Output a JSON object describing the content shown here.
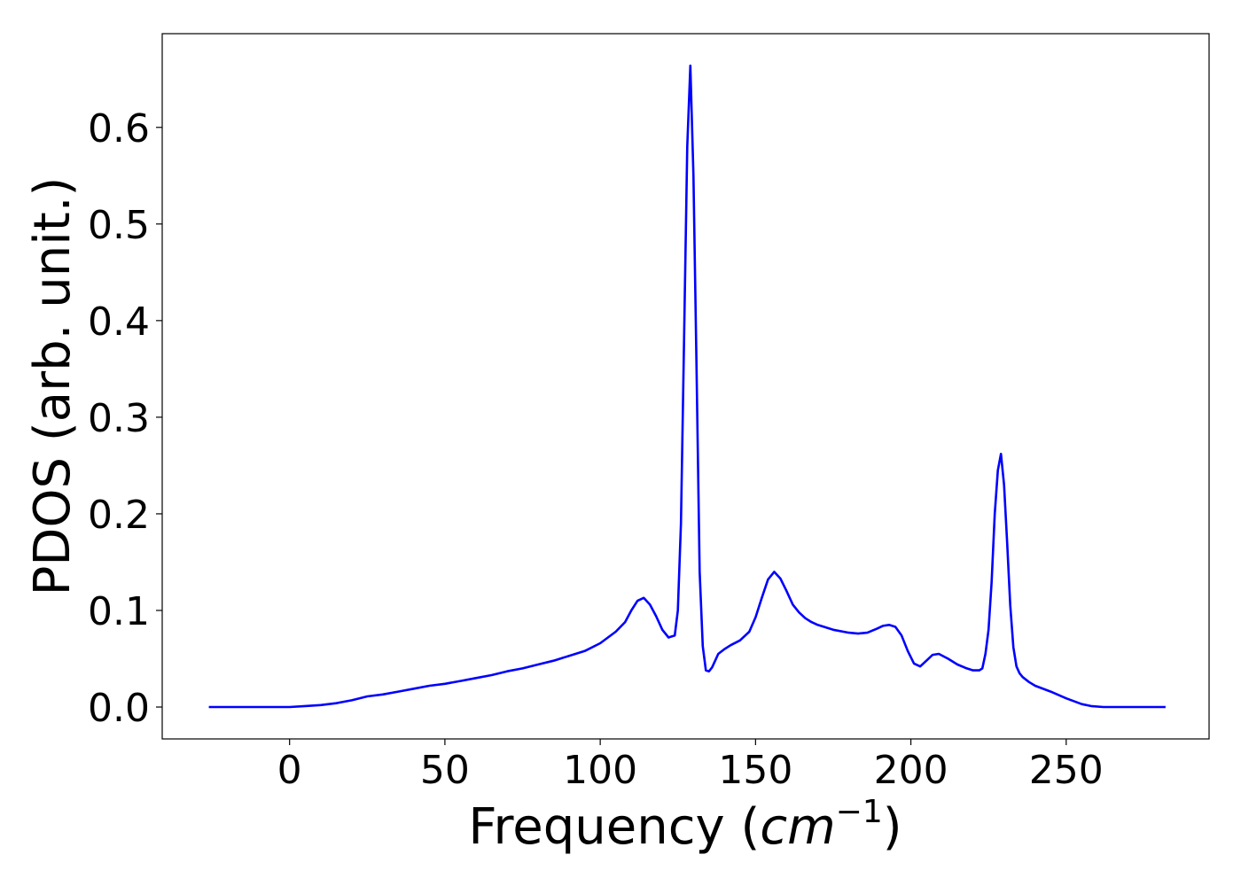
{
  "chart_data": {
    "type": "line",
    "title": "",
    "xlabel": "Frequency (",
    "xlabel_math": "cm",
    "xlabel_superscript": "−1",
    "xlabel_close": ")",
    "ylabel": "PDOS (arb. unit.)",
    "xlim": [
      -41,
      296
    ],
    "ylim": [
      -0.033,
      0.697
    ],
    "xticks": [
      0,
      50,
      100,
      150,
      200,
      250
    ],
    "xtick_labels": [
      "0",
      "50",
      "100",
      "150",
      "200",
      "250"
    ],
    "yticks": [
      0.0,
      0.1,
      0.2,
      0.3,
      0.4,
      0.5,
      0.6
    ],
    "ytick_labels": [
      "0.0",
      "0.1",
      "0.2",
      "0.3",
      "0.4",
      "0.5",
      "0.6"
    ],
    "grid": false,
    "legend": "none",
    "series": [
      {
        "color": "#0000ff",
        "x": [
          -26,
          -10,
          0,
          5,
          10,
          15,
          20,
          25,
          30,
          35,
          40,
          45,
          50,
          55,
          60,
          65,
          70,
          75,
          80,
          85,
          90,
          95,
          100,
          105,
          108,
          110,
          112,
          114,
          116,
          118,
          120,
          122,
          124,
          125,
          126,
          127,
          128,
          129,
          130,
          131,
          132,
          133,
          134,
          135,
          136,
          137,
          138,
          140,
          142,
          145,
          148,
          150,
          152,
          154,
          156,
          158,
          160,
          162,
          164,
          166,
          168,
          170,
          175,
          180,
          183,
          186,
          189,
          191,
          193,
          195,
          197,
          199,
          201,
          203,
          205,
          207,
          209,
          212,
          215,
          218,
          220,
          222,
          223,
          224,
          225,
          226,
          227,
          228,
          229,
          230,
          231,
          232,
          233,
          234,
          235,
          236,
          238,
          240,
          245,
          250,
          255,
          258,
          262,
          270,
          282
        ],
        "y": [
          0.0,
          0.0,
          0.0,
          0.001,
          0.002,
          0.004,
          0.007,
          0.011,
          0.013,
          0.016,
          0.019,
          0.022,
          0.024,
          0.027,
          0.03,
          0.033,
          0.037,
          0.04,
          0.044,
          0.048,
          0.053,
          0.058,
          0.066,
          0.078,
          0.088,
          0.1,
          0.11,
          0.113,
          0.106,
          0.094,
          0.08,
          0.072,
          0.074,
          0.1,
          0.19,
          0.38,
          0.58,
          0.664,
          0.55,
          0.35,
          0.14,
          0.063,
          0.038,
          0.037,
          0.041,
          0.048,
          0.055,
          0.06,
          0.064,
          0.069,
          0.078,
          0.093,
          0.113,
          0.132,
          0.14,
          0.133,
          0.12,
          0.106,
          0.098,
          0.092,
          0.088,
          0.085,
          0.08,
          0.077,
          0.076,
          0.077,
          0.081,
          0.084,
          0.085,
          0.083,
          0.074,
          0.058,
          0.045,
          0.042,
          0.048,
          0.054,
          0.055,
          0.05,
          0.044,
          0.04,
          0.038,
          0.038,
          0.04,
          0.055,
          0.08,
          0.13,
          0.2,
          0.245,
          0.262,
          0.23,
          0.17,
          0.105,
          0.062,
          0.042,
          0.035,
          0.031,
          0.026,
          0.022,
          0.016,
          0.009,
          0.003,
          0.001,
          0.0,
          0.0,
          0.0
        ]
      }
    ]
  }
}
